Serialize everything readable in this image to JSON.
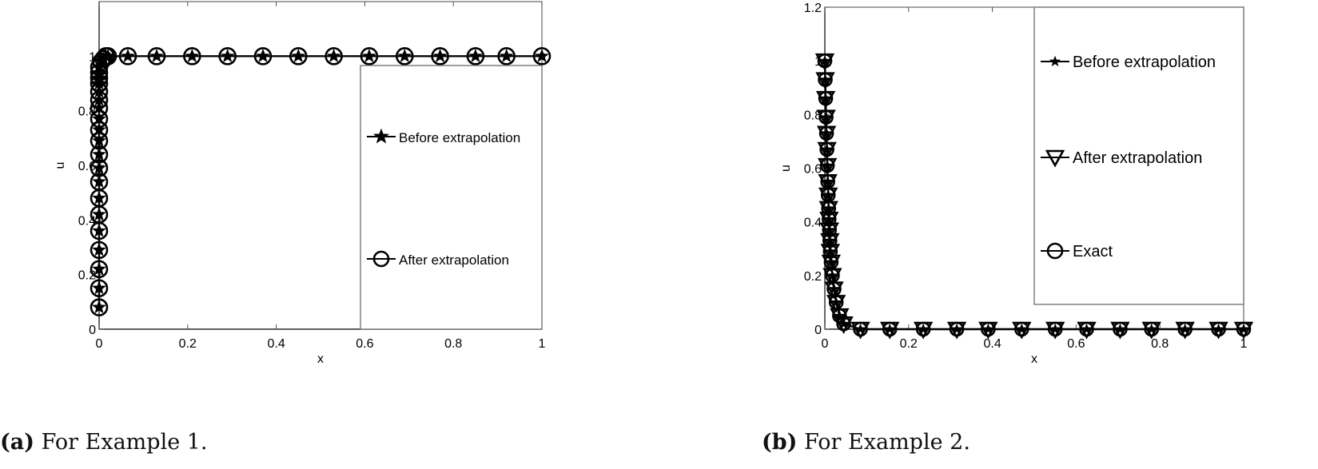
{
  "captions": [
    {
      "label": "(a)",
      "text": "For Example 1."
    },
    {
      "label": "(b)",
      "text": "For Example 2."
    }
  ],
  "chart_data": [
    {
      "type": "line",
      "panel": "a",
      "title": "",
      "xlabel": "x",
      "ylabel": "u",
      "xlim": [
        0,
        1
      ],
      "ylim": [
        0,
        1.2
      ],
      "xticks": [
        "0",
        "0.2",
        "0.4",
        "0.6",
        "0.8",
        "1"
      ],
      "yticks": [
        "0",
        "0.2",
        "0.4",
        "0.6",
        "0.8",
        "1"
      ],
      "grid": false,
      "legend_position": "lower right (inside, boxed)",
      "series": [
        {
          "name": "Before extrapolation",
          "marker": "star",
          "x": [
            0,
            0,
            0,
            0,
            0,
            0,
            0,
            0,
            0,
            0,
            0,
            0,
            0,
            0,
            0,
            0,
            0,
            0,
            0,
            0,
            0.005,
            0.01,
            0.015,
            0.02,
            0.065,
            0.13,
            0.21,
            0.29,
            0.37,
            0.45,
            0.53,
            0.61,
            0.69,
            0.77,
            0.85,
            0.92,
            1.0
          ],
          "y": [
            0.08,
            0.15,
            0.22,
            0.29,
            0.36,
            0.42,
            0.48,
            0.54,
            0.59,
            0.64,
            0.69,
            0.73,
            0.77,
            0.81,
            0.84,
            0.87,
            0.9,
            0.92,
            0.94,
            0.96,
            0.98,
            0.99,
            1.0,
            1.0,
            1.0,
            1.0,
            1.0,
            1.0,
            1.0,
            1.0,
            1.0,
            1.0,
            1.0,
            1.0,
            1.0,
            1.0,
            1.0
          ]
        },
        {
          "name": "After extrapolation",
          "marker": "circle",
          "x": [
            0,
            0,
            0,
            0,
            0,
            0,
            0,
            0,
            0,
            0,
            0,
            0,
            0,
            0,
            0,
            0,
            0,
            0,
            0,
            0,
            0.005,
            0.01,
            0.015,
            0.02,
            0.065,
            0.13,
            0.21,
            0.29,
            0.37,
            0.45,
            0.53,
            0.61,
            0.69,
            0.77,
            0.85,
            0.92,
            1.0
          ],
          "y": [
            0.08,
            0.15,
            0.22,
            0.29,
            0.36,
            0.42,
            0.48,
            0.54,
            0.59,
            0.64,
            0.69,
            0.73,
            0.77,
            0.81,
            0.84,
            0.87,
            0.9,
            0.92,
            0.94,
            0.96,
            0.98,
            0.99,
            1.0,
            1.0,
            1.0,
            1.0,
            1.0,
            1.0,
            1.0,
            1.0,
            1.0,
            1.0,
            1.0,
            1.0,
            1.0,
            1.0,
            1.0
          ]
        }
      ]
    },
    {
      "type": "line",
      "panel": "b",
      "title": "",
      "xlabel": "x",
      "ylabel": "u",
      "xlim": [
        0,
        1
      ],
      "ylim": [
        0,
        1.2
      ],
      "xticks": [
        "0",
        "0.2",
        "0.4",
        "0.6",
        "0.8",
        "1"
      ],
      "yticks": [
        "0",
        "0.2",
        "0.4",
        "0.6",
        "0.8",
        "1",
        "1.2"
      ],
      "grid": false,
      "legend_position": "upper right (inside, boxed)",
      "series": [
        {
          "name": "Before extrapolation",
          "marker": "star",
          "x": [
            0,
            0.001,
            0.002,
            0.003,
            0.004,
            0.005,
            0.006,
            0.007,
            0.008,
            0.009,
            0.01,
            0.011,
            0.012,
            0.013,
            0.015,
            0.018,
            0.022,
            0.027,
            0.035,
            0.045,
            0.085,
            0.155,
            0.235,
            0.315,
            0.39,
            0.47,
            0.55,
            0.625,
            0.705,
            0.78,
            0.86,
            0.94,
            1.0
          ],
          "y": [
            1.0,
            0.93,
            0.86,
            0.79,
            0.73,
            0.67,
            0.61,
            0.55,
            0.5,
            0.45,
            0.41,
            0.37,
            0.33,
            0.29,
            0.25,
            0.2,
            0.15,
            0.1,
            0.05,
            0.02,
            0,
            0,
            0,
            0,
            0,
            0,
            0,
            0,
            0,
            0,
            0,
            0,
            0
          ]
        },
        {
          "name": "After extrapolation",
          "marker": "triangle-down",
          "x": [
            0,
            0.001,
            0.002,
            0.003,
            0.004,
            0.005,
            0.006,
            0.007,
            0.008,
            0.009,
            0.01,
            0.011,
            0.012,
            0.013,
            0.015,
            0.018,
            0.022,
            0.027,
            0.035,
            0.045,
            0.085,
            0.155,
            0.235,
            0.315,
            0.39,
            0.47,
            0.55,
            0.625,
            0.705,
            0.78,
            0.86,
            0.94,
            1.0
          ],
          "y": [
            1.0,
            0.93,
            0.86,
            0.79,
            0.73,
            0.67,
            0.61,
            0.55,
            0.5,
            0.45,
            0.41,
            0.37,
            0.33,
            0.29,
            0.25,
            0.2,
            0.15,
            0.1,
            0.05,
            0.02,
            0,
            0,
            0,
            0,
            0,
            0,
            0,
            0,
            0,
            0,
            0,
            0,
            0
          ]
        },
        {
          "name": "Exact",
          "marker": "circle",
          "x": [
            0,
            0.001,
            0.002,
            0.003,
            0.004,
            0.005,
            0.006,
            0.007,
            0.008,
            0.009,
            0.01,
            0.011,
            0.012,
            0.013,
            0.015,
            0.018,
            0.022,
            0.027,
            0.035,
            0.045,
            0.085,
            0.155,
            0.235,
            0.315,
            0.39,
            0.47,
            0.55,
            0.625,
            0.705,
            0.78,
            0.86,
            0.94,
            1.0
          ],
          "y": [
            1.0,
            0.93,
            0.86,
            0.79,
            0.73,
            0.67,
            0.61,
            0.55,
            0.5,
            0.45,
            0.41,
            0.37,
            0.33,
            0.29,
            0.25,
            0.2,
            0.15,
            0.1,
            0.05,
            0.02,
            0,
            0,
            0,
            0,
            0,
            0,
            0,
            0,
            0,
            0,
            0,
            0,
            0
          ]
        }
      ]
    }
  ]
}
